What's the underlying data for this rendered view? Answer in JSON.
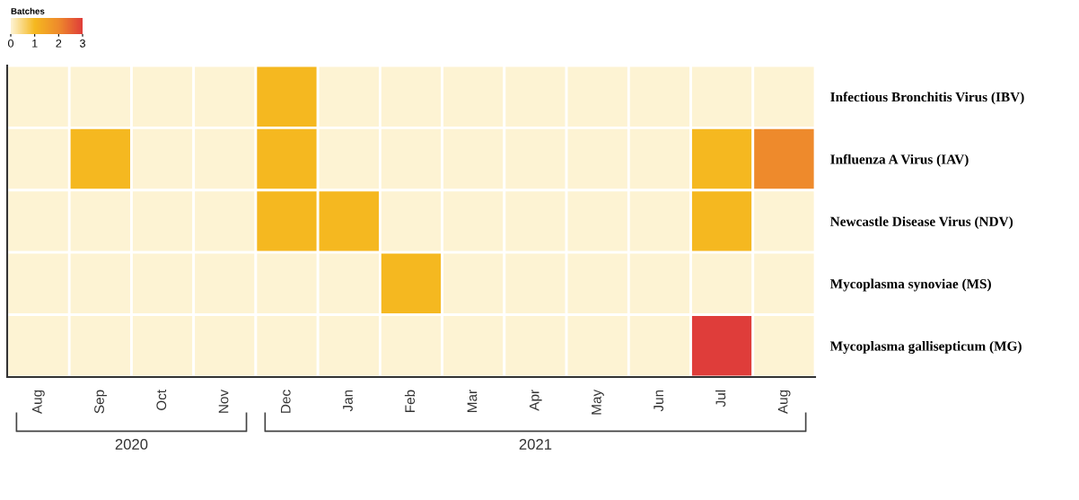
{
  "chart_data": {
    "type": "heatmap",
    "clabel": "Batches",
    "clim": [
      0,
      3
    ],
    "cticks": [
      0,
      1,
      2,
      3
    ],
    "categories": [
      "Aug",
      "Sep",
      "Oct",
      "Nov",
      "Dec",
      "Jan",
      "Feb",
      "Mar",
      "Apr",
      "May",
      "Jun",
      "Jul",
      "Aug"
    ],
    "y_categories": [
      "Infectious Bronchitis Virus (IBV)",
      "Influenza A Virus (IAV)",
      "Newcastle Disease Virus (NDV)",
      "Mycoplasma synoviae (MS)",
      "Mycoplasma gallisepticum (MG)"
    ],
    "cells": [
      [
        0,
        0,
        0,
        0,
        1,
        0,
        0,
        0,
        0,
        0,
        0,
        0,
        0
      ],
      [
        0,
        1,
        0,
        0,
        1,
        0,
        0,
        0,
        0,
        0,
        0,
        1,
        2
      ],
      [
        0,
        0,
        0,
        0,
        1,
        1,
        0,
        0,
        0,
        0,
        0,
        1,
        0
      ],
      [
        0,
        0,
        0,
        0,
        0,
        0,
        1,
        0,
        0,
        0,
        0,
        0,
        0
      ],
      [
        0,
        0,
        0,
        0,
        0,
        0,
        0,
        0,
        0,
        0,
        0,
        3,
        0
      ]
    ],
    "annotations": [
      "2020",
      "2021"
    ]
  }
}
